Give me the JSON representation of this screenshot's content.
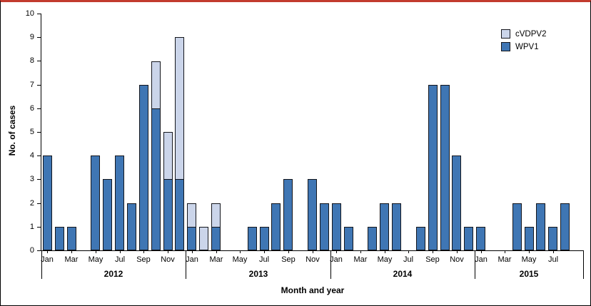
{
  "figure": {
    "ylabel": "No. of cases",
    "xlabel": "Month and year",
    "legend": [
      {
        "label": "cVDPV2",
        "color": "#CBD5EA"
      },
      {
        "label": "WPV1",
        "color": "#3F76B4"
      }
    ],
    "colors": {
      "top_rule": "#C23B2E",
      "bar_border": "#14161C",
      "axis": "#000000",
      "wpv1_blue": "#3F76B4",
      "cvdpv2_light": "#CBD5EA"
    }
  },
  "chart_data": {
    "type": "bar",
    "stacked": true,
    "title": "",
    "xlabel": "Month and year",
    "ylabel": "No. of cases",
    "ylim": [
      0,
      10
    ],
    "ytick_step": 1,
    "grid": false,
    "legend_position": "top-right",
    "legend_order": [
      "cVDPV2",
      "WPV1"
    ],
    "years": [
      {
        "year": "2012",
        "months": 12,
        "month_labels": [
          "Jan",
          "Mar",
          "May",
          "Jul",
          "Sep",
          "Nov"
        ]
      },
      {
        "year": "2013",
        "months": 12,
        "month_labels": [
          "Jan",
          "Mar",
          "May",
          "Jul",
          "Sep",
          "Nov"
        ]
      },
      {
        "year": "2014",
        "months": 12,
        "month_labels": [
          "Jan",
          "Mar",
          "May",
          "Jul",
          "Sep",
          "Nov"
        ]
      },
      {
        "year": "2015",
        "months": 9,
        "month_labels": [
          "Jan",
          "Mar",
          "May",
          "Jul"
        ]
      }
    ],
    "series": [
      {
        "name": "WPV1",
        "color": "#3F76B4",
        "values": [
          4,
          1,
          1,
          0,
          4,
          3,
          4,
          2,
          7,
          6,
          3,
          3,
          1,
          0,
          1,
          0,
          0,
          1,
          1,
          2,
          3,
          0,
          3,
          2,
          2,
          1,
          0,
          1,
          2,
          2,
          0,
          1,
          7,
          7,
          4,
          1,
          1,
          0,
          0,
          2,
          1,
          2,
          1,
          2,
          0
        ]
      },
      {
        "name": "cVDPV2",
        "color": "#CBD5EA",
        "values": [
          0,
          0,
          0,
          0,
          0,
          0,
          0,
          0,
          0,
          2,
          2,
          6,
          1,
          1,
          1,
          0,
          0,
          0,
          0,
          0,
          0,
          0,
          0,
          0,
          0,
          0,
          0,
          0,
          0,
          0,
          0,
          0,
          0,
          0,
          0,
          0,
          0,
          0,
          0,
          0,
          0,
          0,
          0,
          0,
          0
        ]
      }
    ]
  }
}
